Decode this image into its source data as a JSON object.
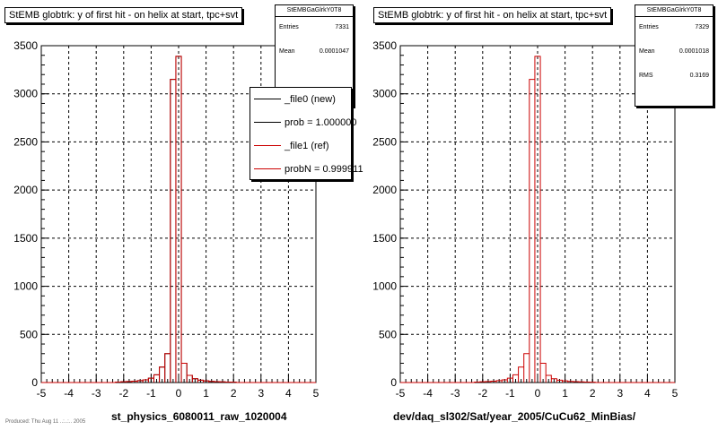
{
  "left": {
    "title": "StEMB globtrk: y of first hit - on helix at start, tpc+svt",
    "stats": {
      "name": "StEMBGaGlrkY0T8",
      "rows": [
        {
          "label": "Entries",
          "value": "7331"
        },
        {
          "label": "Mean",
          "value": "0.0001047"
        }
      ]
    },
    "legend": [
      {
        "label": "_file0 (new)",
        "color": "#000000"
      },
      {
        "label": "prob = 1.000000",
        "color": "#000000"
      },
      {
        "label": "_file1 (ref)",
        "color": "#cc0000"
      },
      {
        "label": "probN = 0.999911",
        "color": "#cc0000"
      }
    ],
    "xlabel": "st_physics_6080011_raw_1020004"
  },
  "right": {
    "title": "StEMB globtrk: y of first hit - on helix at start, tpc+svt",
    "stats": {
      "name": "StEMBGaGlrkY0T8",
      "rows": [
        {
          "label": "Entries",
          "value": "7329"
        },
        {
          "label": "Mean",
          "value": "0.0001018"
        },
        {
          "label": "RMS",
          "value": "0.3169"
        }
      ]
    },
    "xlabel": "dev/daq_sl302/Sat/year_2005/CuCu62_MinBias/"
  },
  "footer": "Produced: Thu Aug 11 ..:..:.. 2005",
  "chart_data": [
    {
      "type": "bar",
      "title": "StEMB globtrk: y of first hit - on helix at start, tpc+svt",
      "xlabel": "st_physics_6080011_raw_1020004",
      "ylabel": "",
      "xlim": [
        -5,
        5
      ],
      "ylim": [
        0,
        3500
      ],
      "xticks": [
        -5,
        -4,
        -3,
        -2,
        -1,
        0,
        1,
        2,
        3,
        4,
        5
      ],
      "yticks": [
        0,
        500,
        1000,
        1500,
        2000,
        2500,
        3000,
        3500
      ],
      "grid": true,
      "legend_position": "top-right",
      "bin_width": 0.2,
      "x": [
        -2.2,
        -2.0,
        -1.8,
        -1.6,
        -1.4,
        -1.2,
        -1.0,
        -0.8,
        -0.6,
        -0.4,
        -0.2,
        0.0,
        0.2,
        0.4,
        0.6,
        0.8,
        1.0,
        1.2,
        1.4,
        1.6,
        1.8,
        2.0
      ],
      "series": [
        {
          "name": "_file0 (new)",
          "color": "#000000",
          "values": [
            5,
            8,
            10,
            14,
            20,
            28,
            45,
            80,
            160,
            300,
            3150,
            3390,
            200,
            75,
            40,
            25,
            18,
            12,
            9,
            7,
            5,
            4
          ]
        },
        {
          "name": "_file1 (ref)",
          "color": "#cc0000",
          "values": [
            5,
            8,
            10,
            14,
            20,
            28,
            45,
            80,
            160,
            300,
            3150,
            3390,
            200,
            75,
            40,
            25,
            18,
            12,
            9,
            7,
            5,
            4
          ]
        }
      ]
    },
    {
      "type": "bar",
      "title": "StEMB globtrk: y of first hit - on helix at start, tpc+svt",
      "xlabel": "dev/daq_sl302/Sat/year_2005/CuCu62_MinBias/",
      "ylabel": "",
      "xlim": [
        -5,
        5
      ],
      "ylim": [
        0,
        3500
      ],
      "xticks": [
        -5,
        -4,
        -3,
        -2,
        -1,
        0,
        1,
        2,
        3,
        4,
        5
      ],
      "yticks": [
        0,
        500,
        1000,
        1500,
        2000,
        2500,
        3000,
        3500
      ],
      "grid": true,
      "bin_width": 0.2,
      "x": [
        -2.2,
        -2.0,
        -1.8,
        -1.6,
        -1.4,
        -1.2,
        -1.0,
        -0.8,
        -0.6,
        -0.4,
        -0.2,
        0.0,
        0.2,
        0.4,
        0.6,
        0.8,
        1.0,
        1.2,
        1.4,
        1.6,
        1.8,
        2.0
      ],
      "series": [
        {
          "name": "",
          "color": "#cc0000",
          "values": [
            5,
            8,
            10,
            14,
            20,
            28,
            45,
            80,
            160,
            300,
            3150,
            3390,
            200,
            75,
            40,
            25,
            18,
            12,
            9,
            7,
            5,
            4
          ]
        }
      ]
    }
  ]
}
